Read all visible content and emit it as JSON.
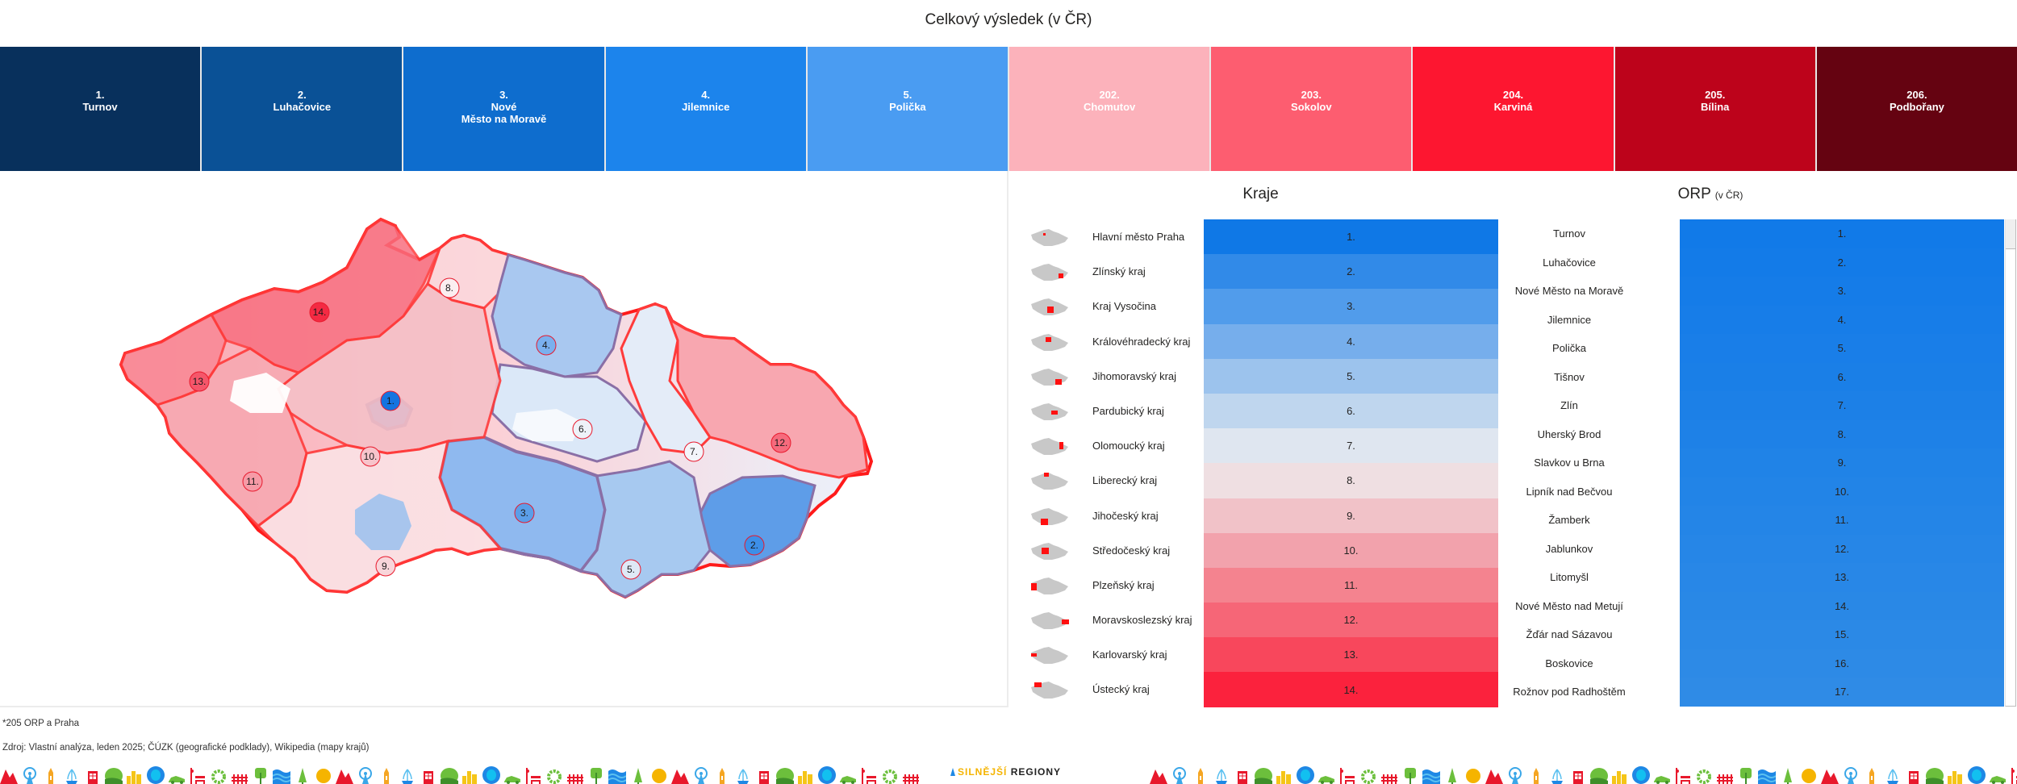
{
  "title": "Celkový výsledek (v ČR)",
  "top_cards": [
    {
      "rank": "1.",
      "name": "Turnov",
      "color": "#08305c"
    },
    {
      "rank": "2.",
      "name": "Luhačovice",
      "color": "#0a5196"
    },
    {
      "rank": "3.",
      "name": "Nové\nMěsto na Moravě",
      "color": "#0e6dce"
    },
    {
      "rank": "4.",
      "name": "Jilemnice",
      "color": "#1c84ec"
    },
    {
      "rank": "5.",
      "name": "Polička",
      "color": "#4a9cf2"
    },
    {
      "rank": "202.",
      "name": "Chomutov",
      "color": "#fcb2bb"
    },
    {
      "rank": "203.",
      "name": "Sokolov",
      "color": "#fd5d70"
    },
    {
      "rank": "204.",
      "name": "Karviná",
      "color": "#fd1630"
    },
    {
      "rank": "205.",
      "name": "Bílina",
      "color": "#bd031b"
    },
    {
      "rank": "206.",
      "name": "Podbořany",
      "color": "#650311"
    }
  ],
  "map": {
    "markers": [
      {
        "label": "1.",
        "color": "#1474e0"
      },
      {
        "label": "2.",
        "color": "#3d8fe8"
      },
      {
        "label": "3.",
        "color": "#5b9ee8"
      },
      {
        "label": "4.",
        "color": "#7ab0ee"
      },
      {
        "label": "5.",
        "color": "#dfe9f6"
      },
      {
        "label": "6.",
        "color": "#eef2f8"
      },
      {
        "label": "7.",
        "color": "#f3f5fa"
      },
      {
        "label": "8.",
        "color": "#fbeef0"
      },
      {
        "label": "9.",
        "color": "#f8d5da"
      },
      {
        "label": "10.",
        "color": "#f7c4cb"
      },
      {
        "label": "11.",
        "color": "#f69aa6"
      },
      {
        "label": "12.",
        "color": "#f66b7d"
      },
      {
        "label": "13.",
        "color": "#f5566a"
      },
      {
        "label": "14.",
        "color": "#f42a43"
      }
    ]
  },
  "kraje": {
    "title": "Kraje",
    "rows": [
      {
        "name": "Hlavní město Praha",
        "rank": "1.",
        "color": "#0f78e6"
      },
      {
        "name": "Zlínský kraj",
        "rank": "2.",
        "color": "#318ae8"
      },
      {
        "name": "Kraj Vysočina",
        "rank": "3.",
        "color": "#519ceb"
      },
      {
        "name": "Královéhradecký kraj",
        "rank": "4.",
        "color": "#76aeec"
      },
      {
        "name": "Jihomoravský kraj",
        "rank": "5.",
        "color": "#9cc3ed"
      },
      {
        "name": "Pardubický kraj",
        "rank": "6.",
        "color": "#bfd6ee"
      },
      {
        "name": "Olomoucký kraj",
        "rank": "7.",
        "color": "#dfe6f0"
      },
      {
        "name": "Liberecký kraj",
        "rank": "8.",
        "color": "#efdfe2"
      },
      {
        "name": "Jihočeský kraj",
        "rank": "9.",
        "color": "#f1c2c8"
      },
      {
        "name": "Středočeský kraj",
        "rank": "10.",
        "color": "#f2a2ac"
      },
      {
        "name": "Plzeňský kraj",
        "rank": "11.",
        "color": "#f4838f"
      },
      {
        "name": "Moravskoslezský kraj",
        "rank": "12.",
        "color": "#f66677"
      },
      {
        "name": "Karlovarský kraj",
        "rank": "13.",
        "color": "#f8475c"
      },
      {
        "name": "Ústecký kraj",
        "rank": "14.",
        "color": "#fb223d"
      }
    ]
  },
  "orp": {
    "title": "ORP",
    "title_suffix": "(v ČR)",
    "bar_color_top": "#117ae8",
    "bar_color_bottom": "#2f8be6",
    "rows": [
      {
        "name": "Turnov",
        "rank": "1."
      },
      {
        "name": "Luhačovice",
        "rank": "2."
      },
      {
        "name": "Nové Město na Moravě",
        "rank": "3."
      },
      {
        "name": "Jilemnice",
        "rank": "4."
      },
      {
        "name": "Polička",
        "rank": "5."
      },
      {
        "name": "Tišnov",
        "rank": "6."
      },
      {
        "name": "Zlín",
        "rank": "7."
      },
      {
        "name": "Uherský Brod",
        "rank": "8."
      },
      {
        "name": "Slavkov u Brna",
        "rank": "9."
      },
      {
        "name": "Lipník nad Bečvou",
        "rank": "10."
      },
      {
        "name": "Žamberk",
        "rank": "11."
      },
      {
        "name": "Jablunkov",
        "rank": "12."
      },
      {
        "name": "Litomyšl",
        "rank": "13."
      },
      {
        "name": "Nové Město nad Metují",
        "rank": "14."
      },
      {
        "name": "Žďár nad Sázavou",
        "rank": "15."
      },
      {
        "name": "Boskovice",
        "rank": "16."
      },
      {
        "name": "Rožnov pod Radhoštěm",
        "rank": "17."
      }
    ]
  },
  "footnote": "*205 ORP a Praha",
  "source": "Zdroj: Vlastní analýza, leden 2025; ČÚZK (geografické podklady), Wikipedia (mapy krajů)",
  "logo": {
    "part1": "SILNĚJŠÍ",
    "part2": "REGIONY"
  },
  "footer_icons": [
    "mountains-icon",
    "ferris-wheel-icon",
    "tower-icon",
    "fountain-icon",
    "phone-booth-icon",
    "bush-icon",
    "city-icon",
    "pond-icon",
    "car-icon",
    "bench-icon",
    "gear-icon",
    "fence-icon",
    "tree-icon",
    "water-icon",
    "cypress-icon",
    "sun-icon"
  ]
}
